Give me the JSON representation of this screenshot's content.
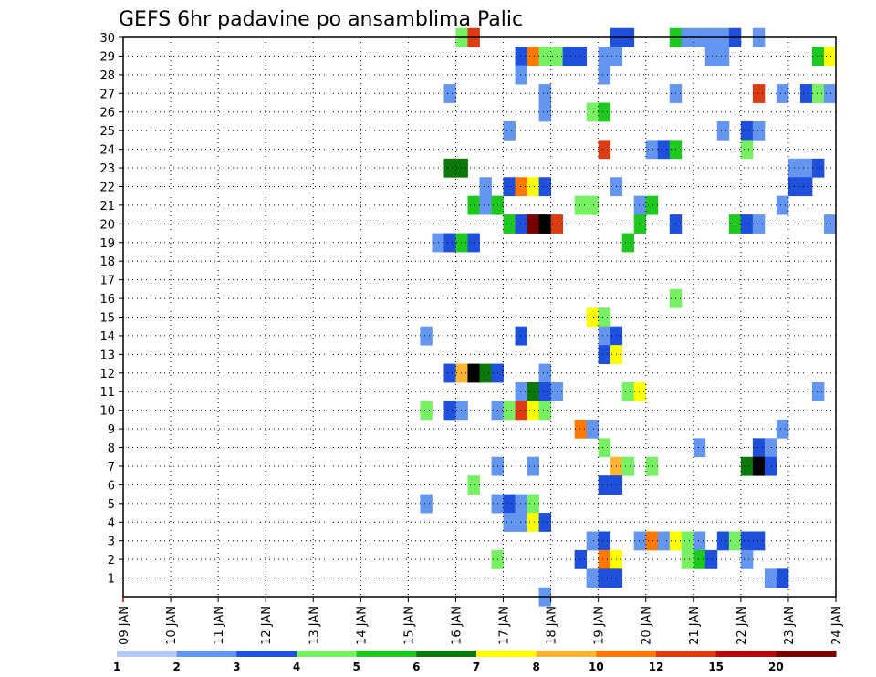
{
  "chart_data": {
    "type": "heatmap",
    "title": "GEFS 6hr padavine po ansamblima Palic",
    "x_tick_labels": [
      "09 JAN",
      "10 JAN",
      "11 JAN",
      "12 JAN",
      "13 JAN",
      "14 JAN",
      "15 JAN",
      "16 JAN",
      "17 JAN",
      "18 JAN",
      "19 JAN",
      "20 JAN",
      "21 JAN",
      "22 JAN",
      "23 JAN",
      "24 JAN"
    ],
    "x_range_days": [
      9,
      24
    ],
    "y_tick_labels": [
      "1",
      "2",
      "3",
      "4",
      "5",
      "6",
      "7",
      "8",
      "9",
      "10",
      "11",
      "12",
      "13",
      "14",
      "15",
      "16",
      "17",
      "18",
      "19",
      "20",
      "21",
      "22",
      "23",
      "24",
      "25",
      "26",
      "27",
      "28",
      "29",
      "30"
    ],
    "y_range": [
      0,
      30
    ],
    "grid": true,
    "legend": {
      "placement": "bottom",
      "boundaries": [
        "1",
        "2",
        "3",
        "4",
        "5",
        "6",
        "7",
        "8",
        "10",
        "12",
        "15",
        "20"
      ],
      "colors": [
        "#b4c8f5",
        "#6496f0",
        "#1e50dc",
        "#78f064",
        "#1ec81e",
        "#0a780a",
        "#ffff00",
        "#ffb432",
        "#ff7800",
        "#dc3c14",
        "#b40a0a",
        "#780000"
      ]
    },
    "cells": [
      [
        16.0,
        30,
        3
      ],
      [
        16.25,
        30,
        9
      ],
      [
        19.25,
        30,
        2
      ],
      [
        19.5,
        30,
        2
      ],
      [
        20.5,
        30,
        4
      ],
      [
        20.75,
        30,
        1
      ],
      [
        21.0,
        30,
        1
      ],
      [
        21.25,
        30,
        1
      ],
      [
        21.5,
        30,
        1
      ],
      [
        21.75,
        30,
        2
      ],
      [
        22.25,
        30,
        1
      ],
      [
        17.25,
        29,
        2
      ],
      [
        17.5,
        29,
        8
      ],
      [
        17.75,
        29,
        3
      ],
      [
        18.0,
        29,
        3
      ],
      [
        18.25,
        29,
        2
      ],
      [
        18.5,
        29,
        2
      ],
      [
        19.0,
        29,
        1
      ],
      [
        19.25,
        29,
        1
      ],
      [
        21.25,
        29,
        1
      ],
      [
        21.5,
        29,
        1
      ],
      [
        23.5,
        29,
        4
      ],
      [
        23.75,
        29,
        6
      ],
      [
        17.25,
        28,
        1
      ],
      [
        19.0,
        28,
        1
      ],
      [
        15.75,
        27,
        1
      ],
      [
        17.75,
        27,
        1
      ],
      [
        20.5,
        27,
        1
      ],
      [
        22.25,
        27,
        9
      ],
      [
        22.75,
        27,
        1
      ],
      [
        23.25,
        27,
        2
      ],
      [
        23.5,
        27,
        3
      ],
      [
        23.75,
        27,
        1
      ],
      [
        17.75,
        26,
        1
      ],
      [
        18.75,
        26,
        3
      ],
      [
        19.0,
        26,
        4
      ],
      [
        17.0,
        25,
        1
      ],
      [
        21.5,
        25,
        1
      ],
      [
        22.0,
        25,
        2
      ],
      [
        22.25,
        25,
        1
      ],
      [
        19.0,
        24,
        9
      ],
      [
        20.0,
        24,
        1
      ],
      [
        20.25,
        24,
        2
      ],
      [
        20.5,
        24,
        4
      ],
      [
        22.0,
        24,
        3
      ],
      [
        15.75,
        23,
        5
      ],
      [
        16.0,
        23,
        5
      ],
      [
        23.0,
        23,
        1
      ],
      [
        23.25,
        23,
        1
      ],
      [
        23.5,
        23,
        2
      ],
      [
        16.5,
        22,
        1
      ],
      [
        17.0,
        22,
        2
      ],
      [
        17.25,
        22,
        8
      ],
      [
        17.5,
        22,
        6
      ],
      [
        17.75,
        22,
        2
      ],
      [
        19.25,
        22,
        1
      ],
      [
        23.0,
        22,
        2
      ],
      [
        23.25,
        22,
        2
      ],
      [
        16.25,
        21,
        4
      ],
      [
        16.5,
        21,
        1
      ],
      [
        16.75,
        21,
        4
      ],
      [
        18.5,
        21,
        3
      ],
      [
        18.75,
        21,
        3
      ],
      [
        19.75,
        21,
        1
      ],
      [
        20.0,
        21,
        4
      ],
      [
        22.75,
        21,
        1
      ],
      [
        17.0,
        20,
        4
      ],
      [
        17.25,
        20,
        2
      ],
      [
        17.5,
        20,
        11
      ],
      [
        17.75,
        20,
        12
      ],
      [
        18.0,
        20,
        9
      ],
      [
        19.75,
        20,
        4
      ],
      [
        20.5,
        20,
        2
      ],
      [
        21.75,
        20,
        4
      ],
      [
        22.0,
        20,
        2
      ],
      [
        22.25,
        20,
        1
      ],
      [
        23.75,
        20,
        1
      ],
      [
        15.5,
        19,
        1
      ],
      [
        15.75,
        19,
        2
      ],
      [
        16.0,
        19,
        4
      ],
      [
        16.25,
        19,
        2
      ],
      [
        19.5,
        19,
        4
      ],
      [
        20.5,
        16,
        3
      ],
      [
        18.75,
        15,
        6
      ],
      [
        19.0,
        15,
        3
      ],
      [
        15.25,
        14,
        1
      ],
      [
        17.25,
        14,
        2
      ],
      [
        19.0,
        14,
        1
      ],
      [
        19.25,
        14,
        2
      ],
      [
        19.0,
        13,
        2
      ],
      [
        19.25,
        13,
        6
      ],
      [
        15.75,
        12,
        2
      ],
      [
        16.0,
        12,
        7
      ],
      [
        16.25,
        12,
        12
      ],
      [
        16.5,
        12,
        5
      ],
      [
        16.75,
        12,
        2
      ],
      [
        17.75,
        12,
        1
      ],
      [
        17.25,
        11,
        1
      ],
      [
        17.5,
        11,
        5
      ],
      [
        17.75,
        11,
        2
      ],
      [
        18.0,
        11,
        1
      ],
      [
        19.5,
        11,
        3
      ],
      [
        19.75,
        11,
        6
      ],
      [
        23.5,
        11,
        1
      ],
      [
        15.25,
        10,
        3
      ],
      [
        15.75,
        10,
        2
      ],
      [
        16.0,
        10,
        1
      ],
      [
        16.75,
        10,
        1
      ],
      [
        17.0,
        10,
        3
      ],
      [
        17.25,
        10,
        9
      ],
      [
        17.5,
        10,
        6
      ],
      [
        17.75,
        10,
        3
      ],
      [
        18.5,
        9,
        8
      ],
      [
        18.75,
        9,
        1
      ],
      [
        22.75,
        9,
        1
      ],
      [
        19.0,
        8,
        3
      ],
      [
        21.0,
        8,
        1
      ],
      [
        22.25,
        8,
        2
      ],
      [
        22.5,
        8,
        1
      ],
      [
        16.75,
        7,
        1
      ],
      [
        17.5,
        7,
        1
      ],
      [
        19.25,
        7,
        7
      ],
      [
        19.5,
        7,
        3
      ],
      [
        20.0,
        7,
        3
      ],
      [
        22.0,
        7,
        5
      ],
      [
        22.25,
        7,
        12
      ],
      [
        22.5,
        7,
        2
      ],
      [
        16.25,
        6,
        3
      ],
      [
        19.0,
        6,
        2
      ],
      [
        19.25,
        6,
        2
      ],
      [
        15.25,
        5,
        1
      ],
      [
        16.75,
        5,
        1
      ],
      [
        17.0,
        5,
        2
      ],
      [
        17.25,
        5,
        1
      ],
      [
        17.5,
        5,
        3
      ],
      [
        17.0,
        4,
        1
      ],
      [
        17.25,
        4,
        1
      ],
      [
        17.5,
        4,
        6
      ],
      [
        17.75,
        4,
        2
      ],
      [
        18.75,
        3,
        1
      ],
      [
        19.0,
        3,
        2
      ],
      [
        19.75,
        3,
        1
      ],
      [
        20.0,
        3,
        8
      ],
      [
        20.25,
        3,
        1
      ],
      [
        20.5,
        3,
        6
      ],
      [
        20.75,
        3,
        3
      ],
      [
        21.0,
        3,
        1
      ],
      [
        21.5,
        3,
        2
      ],
      [
        21.75,
        3,
        3
      ],
      [
        22.0,
        3,
        2
      ],
      [
        22.25,
        3,
        2
      ],
      [
        16.75,
        2,
        3
      ],
      [
        18.5,
        2,
        2
      ],
      [
        19.0,
        2,
        8
      ],
      [
        19.25,
        2,
        6
      ],
      [
        20.75,
        2,
        3
      ],
      [
        21.0,
        2,
        4
      ],
      [
        21.25,
        2,
        2
      ],
      [
        22.0,
        2,
        1
      ],
      [
        18.75,
        1,
        1
      ],
      [
        19.0,
        1,
        2
      ],
      [
        19.25,
        1,
        2
      ],
      [
        22.5,
        1,
        1
      ],
      [
        22.75,
        1,
        2
      ],
      [
        17.75,
        0,
        1
      ]
    ]
  }
}
